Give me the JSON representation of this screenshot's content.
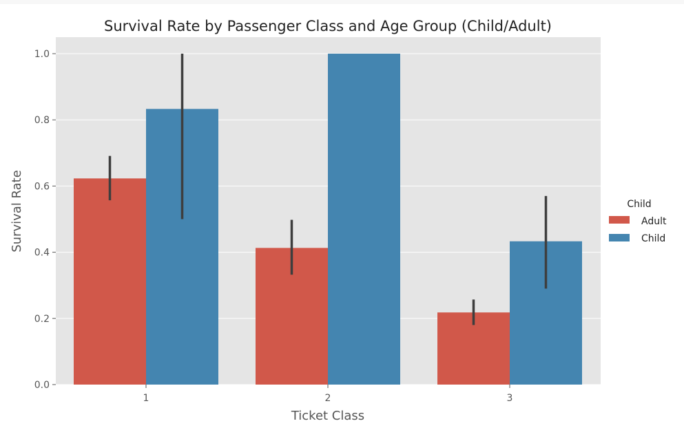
{
  "chart_data": {
    "type": "bar",
    "title": "Survival Rate by Passenger Class and Age Group (Child/Adult)",
    "xlabel": "Ticket Class",
    "ylabel": "Survival Rate",
    "categories": [
      "1",
      "2",
      "3"
    ],
    "ylim": [
      0,
      1.05
    ],
    "yticks": [
      0.0,
      0.2,
      0.4,
      0.6,
      0.8,
      1.0
    ],
    "ytick_labels": [
      "0.0",
      "0.2",
      "0.4",
      "0.6",
      "0.8",
      "1.0"
    ],
    "grid": true,
    "legend": {
      "title": "Child",
      "position": "right"
    },
    "series": [
      {
        "name": "Adult",
        "color": "#d1584a",
        "values": [
          0.623,
          0.413,
          0.218
        ],
        "error_low": [
          0.557,
          0.332,
          0.18
        ],
        "error_high": [
          0.691,
          0.498,
          0.257
        ]
      },
      {
        "name": "Child",
        "color": "#4485b0",
        "values": [
          0.833,
          1.0,
          0.433
        ],
        "error_low": [
          0.5,
          null,
          0.29
        ],
        "error_high": [
          1.0,
          null,
          0.57
        ]
      }
    ]
  }
}
